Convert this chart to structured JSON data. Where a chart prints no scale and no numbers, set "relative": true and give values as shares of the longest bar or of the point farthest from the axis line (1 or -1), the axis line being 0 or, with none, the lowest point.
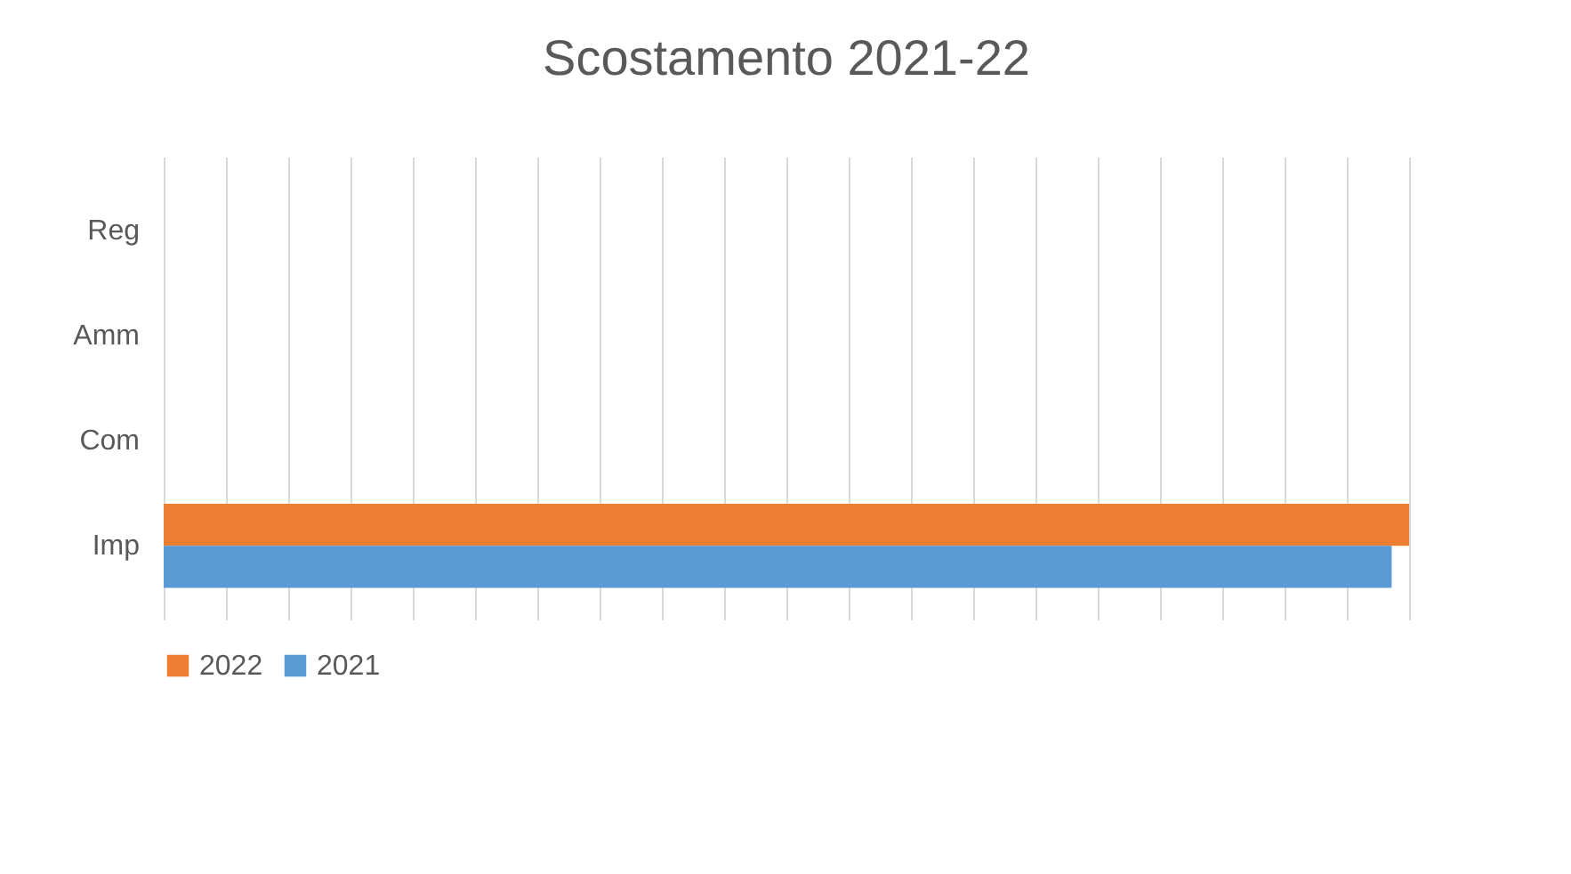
{
  "chart_data": {
    "type": "bar",
    "orientation": "horizontal",
    "relative": true,
    "title": "Scostamento 2021-22",
    "categories": [
      "Reg",
      "Amm",
      "Com",
      "Imp"
    ],
    "series": [
      {
        "name": "2022",
        "color": "#ed7d31",
        "values": [
          0,
          0,
          0,
          1
        ]
      },
      {
        "name": "2021",
        "color": "#5b9bd5",
        "values": [
          0,
          0,
          0,
          0.986
        ]
      }
    ],
    "grid": "x",
    "legend": "bottom"
  }
}
